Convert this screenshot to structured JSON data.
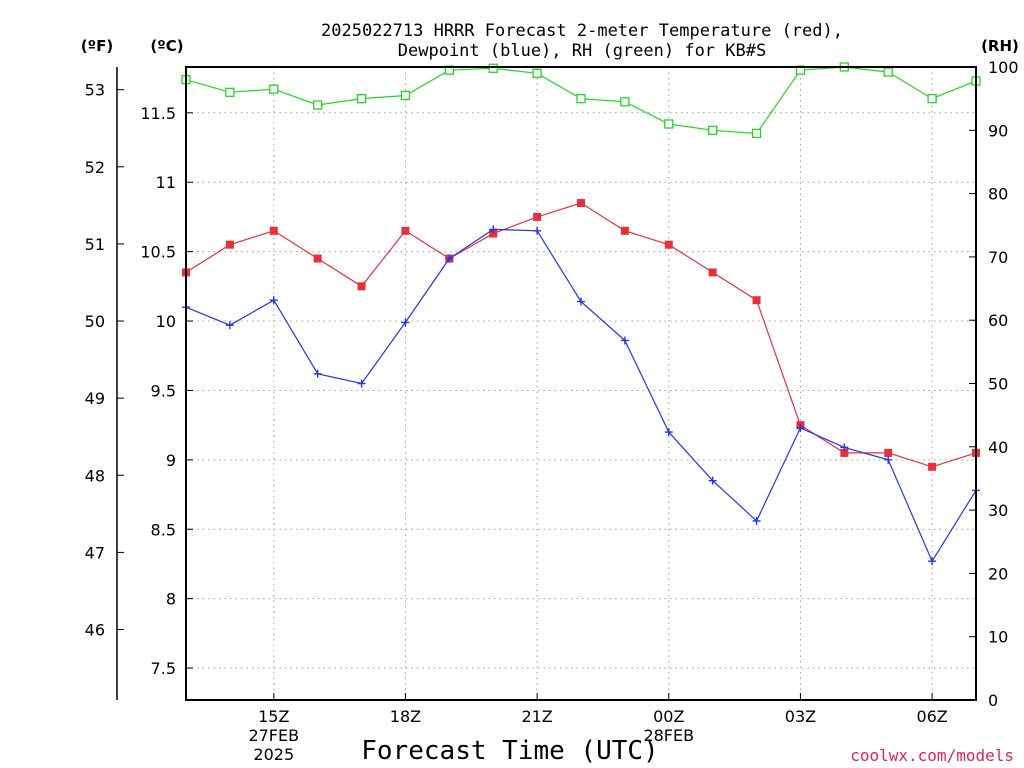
{
  "chart_data": {
    "type": "line",
    "title": "2025022713 HRRR Forecast 2-meter Temperature (red),",
    "subtitle": "Dewpoint (blue), RH (green) for KB#S",
    "xlabel": "Forecast Time (UTC)",
    "credit": "coolwx.com/models",
    "units": {
      "fahrenheit": "(ºF)",
      "celsius": "(ºC)",
      "rh": "(RH)"
    },
    "x": [
      "13Z",
      "14Z",
      "15Z",
      "16Z",
      "17Z",
      "18Z",
      "19Z",
      "20Z",
      "21Z",
      "22Z",
      "23Z",
      "00Z",
      "01Z",
      "02Z",
      "03Z",
      "04Z",
      "05Z",
      "06Z",
      "07Z"
    ],
    "x_ticks": [
      {
        "label": "15Z",
        "date": "27FEB",
        "year": "2025"
      },
      {
        "label": "18Z"
      },
      {
        "label": "21Z"
      },
      {
        "label": "00Z",
        "date": "28FEB"
      },
      {
        "label": "03Z"
      },
      {
        "label": "06Z"
      }
    ],
    "celsius_ticks": [
      "7.5",
      "8",
      "8.5",
      "9",
      "9.5",
      "10",
      "10.5",
      "11",
      "11.5"
    ],
    "fahrenheit_ticks": [
      "46",
      "47",
      "48",
      "49",
      "50",
      "51",
      "52",
      "53"
    ],
    "rh_ticks": [
      "0",
      "10",
      "20",
      "30",
      "40",
      "50",
      "60",
      "70",
      "80",
      "90",
      "100"
    ],
    "ylim_celsius": [
      7.27,
      11.83
    ],
    "ylim_rh": [
      0,
      100
    ],
    "grid": true,
    "series": [
      {
        "name": "Temperature",
        "axis": "celsius",
        "color": "#e8303a",
        "marker": "filled-square",
        "values": [
          10.35,
          10.55,
          10.65,
          10.45,
          10.25,
          10.65,
          10.45,
          10.63,
          10.75,
          10.85,
          10.65,
          10.55,
          10.35,
          10.15,
          9.25,
          9.05,
          9.05,
          8.95,
          9.05
        ]
      },
      {
        "name": "Dewpoint",
        "axis": "celsius",
        "color": "#2236e8",
        "marker": "plus",
        "values": [
          10.1,
          9.97,
          10.15,
          9.62,
          9.55,
          9.99,
          10.45,
          10.66,
          10.65,
          10.14,
          9.86,
          9.2,
          8.85,
          8.56,
          9.23,
          9.09,
          9.0,
          8.27,
          8.78
        ]
      },
      {
        "name": "RH",
        "axis": "rh",
        "color": "#22d822",
        "marker": "open-square",
        "values": [
          98,
          96,
          96.5,
          94,
          95,
          95.5,
          99.5,
          99.8,
          99,
          95,
          94.5,
          91,
          90,
          89.5,
          99.5,
          100,
          99.2,
          95,
          97.8
        ]
      }
    ]
  }
}
